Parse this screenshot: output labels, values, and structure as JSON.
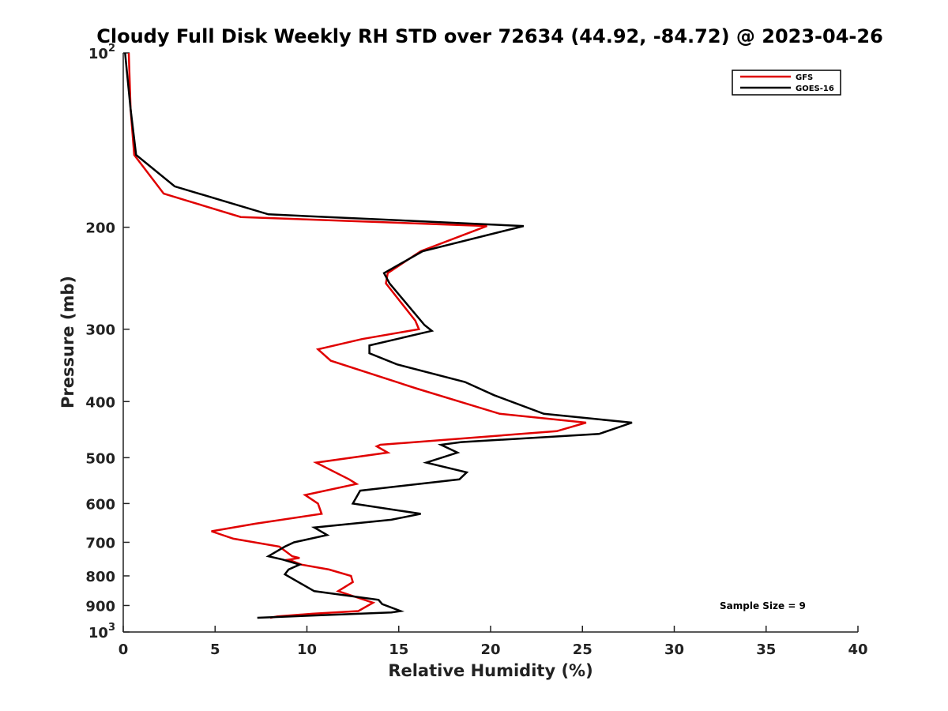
{
  "chart_data": {
    "type": "line",
    "title": "Cloudy Full Disk Weekly RH STD over 72634 (44.92, -84.72) @ 2023-04-26",
    "xlabel": "Relative Humidity (%)",
    "ylabel": "Pressure (mb)",
    "xlim": [
      0,
      40
    ],
    "ylim": [
      100,
      1000
    ],
    "y_scale": "log",
    "y_reversed": true,
    "grid": false,
    "legend_position": "top-right",
    "x_ticks": [
      "0",
      "5",
      "10",
      "15",
      "20",
      "25",
      "30",
      "35",
      "40"
    ],
    "y_ticks": [
      {
        "value": 100,
        "base": "10",
        "exp": "2"
      },
      {
        "value": 200,
        "label": "200"
      },
      {
        "value": 300,
        "label": "300"
      },
      {
        "value": 400,
        "label": "400"
      },
      {
        "value": 500,
        "label": "500"
      },
      {
        "value": 600,
        "label": "600"
      },
      {
        "value": 700,
        "label": "700"
      },
      {
        "value": 800,
        "label": "800"
      },
      {
        "value": 900,
        "label": "900"
      },
      {
        "value": 1000,
        "base": "10",
        "exp": "3"
      }
    ],
    "annotation": "Sample Size = 9",
    "series": [
      {
        "name": "GFS",
        "color": "#e00000",
        "points": [
          [
            0.3,
            100
          ],
          [
            0.4,
            125
          ],
          [
            0.6,
            150
          ],
          [
            2.2,
            175
          ],
          [
            6.4,
            192
          ],
          [
            19.8,
            199
          ],
          [
            16.2,
            220
          ],
          [
            14.4,
            240
          ],
          [
            14.3,
            250
          ],
          [
            15.9,
            290
          ],
          [
            16.1,
            300
          ],
          [
            13.0,
            312
          ],
          [
            10.6,
            325
          ],
          [
            11.3,
            340
          ],
          [
            16.0,
            380
          ],
          [
            20.5,
            420
          ],
          [
            25.2,
            435
          ],
          [
            23.6,
            450
          ],
          [
            14.0,
            475
          ],
          [
            13.8,
            478
          ],
          [
            14.4,
            490
          ],
          [
            10.5,
            510
          ],
          [
            12.3,
            545
          ],
          [
            12.7,
            555
          ],
          [
            9.9,
            580
          ],
          [
            10.6,
            600
          ],
          [
            10.8,
            625
          ],
          [
            7.2,
            650
          ],
          [
            4.8,
            670
          ],
          [
            6.0,
            690
          ],
          [
            8.5,
            712
          ],
          [
            9.2,
            740
          ],
          [
            9.6,
            745
          ],
          [
            9.0,
            750
          ],
          [
            9.7,
            765
          ],
          [
            11.2,
            780
          ],
          [
            12.4,
            800
          ],
          [
            12.5,
            820
          ],
          [
            11.7,
            850
          ],
          [
            13.6,
            890
          ],
          [
            12.8,
            920
          ],
          [
            10.3,
            930
          ],
          [
            8.4,
            940
          ],
          [
            8.0,
            945
          ]
        ]
      },
      {
        "name": "GOES-16",
        "color": "#000000",
        "points": [
          [
            0.1,
            100
          ],
          [
            0.4,
            125
          ],
          [
            0.7,
            150
          ],
          [
            2.8,
            170
          ],
          [
            7.9,
            190
          ],
          [
            21.8,
            199
          ],
          [
            16.3,
            220
          ],
          [
            14.2,
            240
          ],
          [
            14.5,
            250
          ],
          [
            16.4,
            295
          ],
          [
            16.8,
            302
          ],
          [
            13.4,
            320
          ],
          [
            13.4,
            330
          ],
          [
            14.9,
            345
          ],
          [
            18.6,
            370
          ],
          [
            20.2,
            390
          ],
          [
            22.9,
            420
          ],
          [
            27.7,
            435
          ],
          [
            25.9,
            455
          ],
          [
            18.4,
            470
          ],
          [
            17.3,
            475
          ],
          [
            18.2,
            490
          ],
          [
            16.5,
            510
          ],
          [
            18.7,
            530
          ],
          [
            18.3,
            545
          ],
          [
            12.9,
            570
          ],
          [
            12.5,
            600
          ],
          [
            16.2,
            625
          ],
          [
            14.6,
            640
          ],
          [
            10.4,
            660
          ],
          [
            11.1,
            680
          ],
          [
            9.3,
            700
          ],
          [
            8.8,
            712
          ],
          [
            7.9,
            740
          ],
          [
            8.7,
            750
          ],
          [
            9.6,
            765
          ],
          [
            9.0,
            780
          ],
          [
            8.8,
            795
          ],
          [
            10.4,
            850
          ],
          [
            13.9,
            880
          ],
          [
            14.1,
            895
          ],
          [
            15.1,
            920
          ],
          [
            14.6,
            925
          ],
          [
            7.3,
            945
          ]
        ]
      }
    ]
  }
}
